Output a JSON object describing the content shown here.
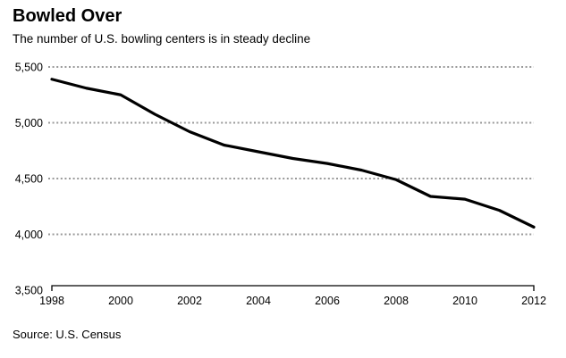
{
  "chart_data": {
    "type": "line",
    "title": "Bowled Over",
    "subtitle": "The number of U.S. bowling centers is in steady decline",
    "source": "Source: U.S. Census",
    "series_name": "U.S. bowling centers",
    "x": [
      1998,
      1999,
      2000,
      2001,
      2002,
      2003,
      2004,
      2005,
      2006,
      2007,
      2008,
      2009,
      2010,
      2011,
      2012
    ],
    "values": [
      5390,
      5310,
      5250,
      5075,
      4920,
      4800,
      4740,
      4680,
      4635,
      4575,
      4490,
      4340,
      4315,
      4215,
      4065
    ],
    "xlim": [
      1998,
      2012
    ],
    "ylim": [
      3500,
      5500
    ],
    "xticks": [
      {
        "value": 1998,
        "label": "1998"
      },
      {
        "value": 2000,
        "label": "2000"
      },
      {
        "value": 2002,
        "label": "2002"
      },
      {
        "value": 2004,
        "label": "2004"
      },
      {
        "value": 2006,
        "label": "2006"
      },
      {
        "value": 2008,
        "label": "2008"
      },
      {
        "value": 2010,
        "label": "2010"
      },
      {
        "value": 2012,
        "label": "2012"
      }
    ],
    "yticks": [
      {
        "value": 5500,
        "label": "5,500",
        "gridline": true
      },
      {
        "value": 5000,
        "label": "5,000",
        "gridline": true
      },
      {
        "value": 4500,
        "label": "4,500",
        "gridline": true
      },
      {
        "value": 4000,
        "label": "4,000",
        "gridline": true
      },
      {
        "value": 3500,
        "label": "3,500",
        "gridline": false
      }
    ],
    "line_color": "#000000",
    "gridline_color": "#999999",
    "background_color": "#ffffff",
    "legend": "none",
    "grid": "horizontal-dotted"
  }
}
